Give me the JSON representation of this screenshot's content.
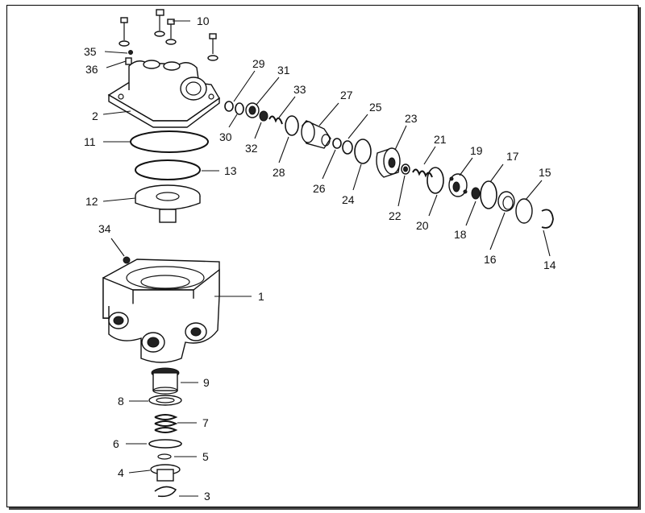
{
  "callouts": [
    {
      "id": "c1",
      "text": "1"
    },
    {
      "id": "c2",
      "text": "2"
    },
    {
      "id": "c3",
      "text": "3"
    },
    {
      "id": "c4",
      "text": "4"
    },
    {
      "id": "c5",
      "text": "5"
    },
    {
      "id": "c6",
      "text": "6"
    },
    {
      "id": "c7",
      "text": "7"
    },
    {
      "id": "c8",
      "text": "8"
    },
    {
      "id": "c9",
      "text": "9"
    },
    {
      "id": "c10",
      "text": "10"
    },
    {
      "id": "c11",
      "text": "11"
    },
    {
      "id": "c12",
      "text": "12"
    },
    {
      "id": "c13",
      "text": "13"
    },
    {
      "id": "c14",
      "text": "14"
    },
    {
      "id": "c15",
      "text": "15"
    },
    {
      "id": "c16",
      "text": "16"
    },
    {
      "id": "c17",
      "text": "17"
    },
    {
      "id": "c18",
      "text": "18"
    },
    {
      "id": "c19",
      "text": "19"
    },
    {
      "id": "c20",
      "text": "20"
    },
    {
      "id": "c21",
      "text": "21"
    },
    {
      "id": "c22",
      "text": "22"
    },
    {
      "id": "c23",
      "text": "23"
    },
    {
      "id": "c24",
      "text": "24"
    },
    {
      "id": "c25",
      "text": "25"
    },
    {
      "id": "c26",
      "text": "26"
    },
    {
      "id": "c27",
      "text": "27"
    },
    {
      "id": "c28",
      "text": "28"
    },
    {
      "id": "c29",
      "text": "29"
    },
    {
      "id": "c30",
      "text": "30"
    },
    {
      "id": "c31",
      "text": "31"
    },
    {
      "id": "c32",
      "text": "32"
    },
    {
      "id": "c33",
      "text": "33"
    },
    {
      "id": "c34",
      "text": "34"
    },
    {
      "id": "c35",
      "text": "35"
    },
    {
      "id": "c36",
      "text": "36"
    }
  ],
  "colors": {
    "line": "#111111",
    "background": "#ffffff"
  }
}
